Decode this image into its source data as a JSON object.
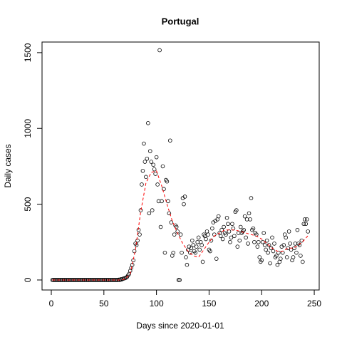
{
  "chart_data": {
    "type": "scatter",
    "title": "Portugal",
    "x_label": "Days since 2020-01-01",
    "y_label": "Daily cases",
    "xlim": [
      -8.8,
      254.7
    ],
    "ylim": [
      -66,
      1570
    ],
    "xticks": [
      0,
      50,
      100,
      150,
      200,
      250
    ],
    "yticks": [
      0,
      500,
      1000,
      1500
    ],
    "series": [
      {
        "marker": "circle",
        "color": "#000000",
        "x": [
          1,
          2,
          3,
          4,
          5,
          6,
          7,
          8,
          9,
          10,
          11,
          12,
          13,
          14,
          15,
          16,
          17,
          18,
          19,
          20,
          21,
          22,
          23,
          24,
          25,
          26,
          27,
          28,
          29,
          30,
          31,
          32,
          33,
          34,
          35,
          36,
          37,
          38,
          39,
          40,
          41,
          42,
          43,
          44,
          45,
          46,
          47,
          48,
          49,
          50,
          51,
          52,
          53,
          54,
          55,
          56,
          57,
          58,
          59,
          60,
          61,
          62,
          63,
          64,
          65,
          66,
          67,
          68,
          69,
          70,
          71,
          72,
          73,
          74,
          75,
          76,
          77,
          78,
          79,
          80,
          81,
          82,
          83,
          84,
          85,
          86,
          87,
          88,
          89,
          90,
          91,
          92,
          93,
          94,
          95,
          96,
          97,
          98,
          99,
          100,
          101,
          102,
          103,
          104,
          105,
          106,
          107,
          108,
          109,
          110,
          111,
          112,
          113,
          114,
          115,
          116,
          117,
          118,
          119,
          120,
          121,
          122,
          123,
          124,
          125,
          126,
          127,
          128,
          129,
          130,
          131,
          132,
          133,
          134,
          135,
          136,
          137,
          138,
          139,
          140,
          141,
          142,
          143,
          144,
          145,
          146,
          147,
          148,
          149,
          150,
          151,
          152,
          153,
          154,
          155,
          156,
          157,
          158,
          159,
          160,
          161,
          162,
          163,
          164,
          165,
          166,
          167,
          168,
          169,
          170,
          171,
          172,
          173,
          174,
          175,
          176,
          177,
          178,
          179,
          180,
          181,
          182,
          183,
          184,
          185,
          186,
          187,
          188,
          189,
          190,
          191,
          192,
          193,
          194,
          195,
          196,
          197,
          198,
          199,
          200,
          201,
          202,
          203,
          204,
          205,
          206,
          207,
          208,
          209,
          210,
          211,
          212,
          213,
          214,
          215,
          216,
          217,
          218,
          219,
          220,
          221,
          222,
          223,
          224,
          225,
          226,
          227,
          228,
          229,
          230,
          231,
          232,
          233,
          234,
          235,
          236,
          237,
          238,
          239,
          240,
          241,
          242,
          243,
          244
        ],
        "values": [
          0,
          0,
          0,
          0,
          0,
          0,
          0,
          0,
          0,
          0,
          0,
          0,
          0,
          0,
          0,
          0,
          0,
          0,
          0,
          0,
          0,
          0,
          0,
          0,
          0,
          0,
          0,
          0,
          0,
          0,
          0,
          0,
          0,
          0,
          0,
          0,
          0,
          0,
          0,
          0,
          0,
          0,
          0,
          0,
          0,
          0,
          0,
          0,
          0,
          0,
          0,
          0,
          0,
          0,
          0,
          0,
          0,
          0,
          0,
          0,
          0,
          0,
          0,
          2,
          0,
          5,
          3,
          8,
          10,
          12,
          15,
          20,
          30,
          40,
          60,
          80,
          100,
          130,
          190,
          240,
          230,
          260,
          330,
          300,
          460,
          630,
          720,
          900,
          780,
          680,
          800,
          1035,
          440,
          850,
          780,
          460,
          760,
          730,
          700,
          810,
          630,
          520,
          1516,
          350,
          520,
          750,
          600,
          180,
          660,
          650,
          520,
          440,
          920,
          380,
          160,
          180,
          300,
          360,
          350,
          320,
          0,
          0,
          300,
          180,
          540,
          500,
          550,
          150,
          100,
          200,
          220,
          180,
          210,
          260,
          230,
          190,
          180,
          220,
          250,
          280,
          200,
          250,
          230,
          120,
          300,
          290,
          270,
          320,
          300,
          200,
          190,
          260,
          340,
          380,
          300,
          390,
          140,
          400,
          420,
          310,
          290,
          330,
          270,
          350,
          310,
          300,
          410,
          370,
          320,
          250,
          280,
          370,
          340,
          290,
          450,
          460,
          220,
          310,
          260,
          350,
          310,
          320,
          330,
          420,
          280,
          400,
          240,
          440,
          400,
          540,
          330,
          340,
          250,
          310,
          300,
          220,
          250,
          150,
          120,
          130,
          250,
          310,
          230,
          200,
          260,
          180,
          230,
          110,
          210,
          280,
          190,
          240,
          150,
          160,
          100,
          180,
          120,
          140,
          220,
          180,
          230,
          300,
          280,
          150,
          210,
          320,
          240,
          200,
          130,
          150,
          210,
          240,
          180,
          330,
          240,
          230,
          160,
          260,
          120,
          370,
          400,
          370,
          400,
          320
        ]
      },
      {
        "line": "dashed",
        "color": "#ff0000",
        "x": [
          1,
          10,
          20,
          30,
          40,
          50,
          60,
          65,
          70,
          75,
          80,
          85,
          90,
          95,
          100,
          105,
          110,
          115,
          120,
          125,
          130,
          135,
          140,
          145,
          150,
          155,
          160,
          165,
          170,
          175,
          180,
          185,
          190,
          195,
          200,
          205,
          210,
          215,
          220,
          225,
          230,
          235,
          240,
          245
        ],
        "values": [
          0,
          0,
          0,
          0,
          0,
          0,
          0,
          0,
          5,
          40,
          200,
          450,
          640,
          710,
          720,
          620,
          500,
          390,
          310,
          240,
          190,
          160,
          150,
          200,
          250,
          290,
          310,
          330,
          330,
          330,
          320,
          310,
          300,
          290,
          270,
          240,
          210,
          190,
          190,
          210,
          210,
          230,
          260,
          300
        ]
      }
    ]
  }
}
